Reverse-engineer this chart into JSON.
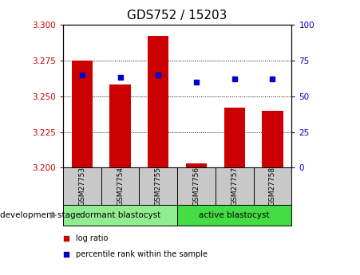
{
  "title": "GDS752 / 15203",
  "samples": [
    "GSM27753",
    "GSM27754",
    "GSM27755",
    "GSM27756",
    "GSM27757",
    "GSM27758"
  ],
  "log_ratio": [
    3.275,
    3.258,
    3.292,
    3.203,
    3.242,
    3.24
  ],
  "percentile_rank": [
    65,
    63,
    65,
    60,
    62,
    62
  ],
  "bar_bottom": 3.2,
  "ylim_left": [
    3.2,
    3.3
  ],
  "ylim_right": [
    0,
    100
  ],
  "yticks_left": [
    3.2,
    3.225,
    3.25,
    3.275,
    3.3
  ],
  "yticks_right": [
    0,
    25,
    50,
    75,
    100
  ],
  "bar_color": "#CC0000",
  "dot_color": "#0000CC",
  "grid_color": "#000000",
  "groups": [
    {
      "label": "dormant blastocyst",
      "indices": [
        0,
        1,
        2
      ],
      "color": "#90EE90"
    },
    {
      "label": "active blastocyst",
      "indices": [
        3,
        4,
        5
      ],
      "color": "#44DD44"
    }
  ],
  "dev_stage_label": "development stage",
  "legend_items": [
    {
      "color": "#CC0000",
      "label": "log ratio"
    },
    {
      "color": "#0000CC",
      "label": "percentile rank within the sample"
    }
  ],
  "tick_color_left": "#CC0000",
  "tick_color_right": "#0000CC",
  "bg_plot": "#ffffff",
  "bg_xtick": "#c8c8c8",
  "title_fontsize": 11,
  "bar_width": 0.55
}
